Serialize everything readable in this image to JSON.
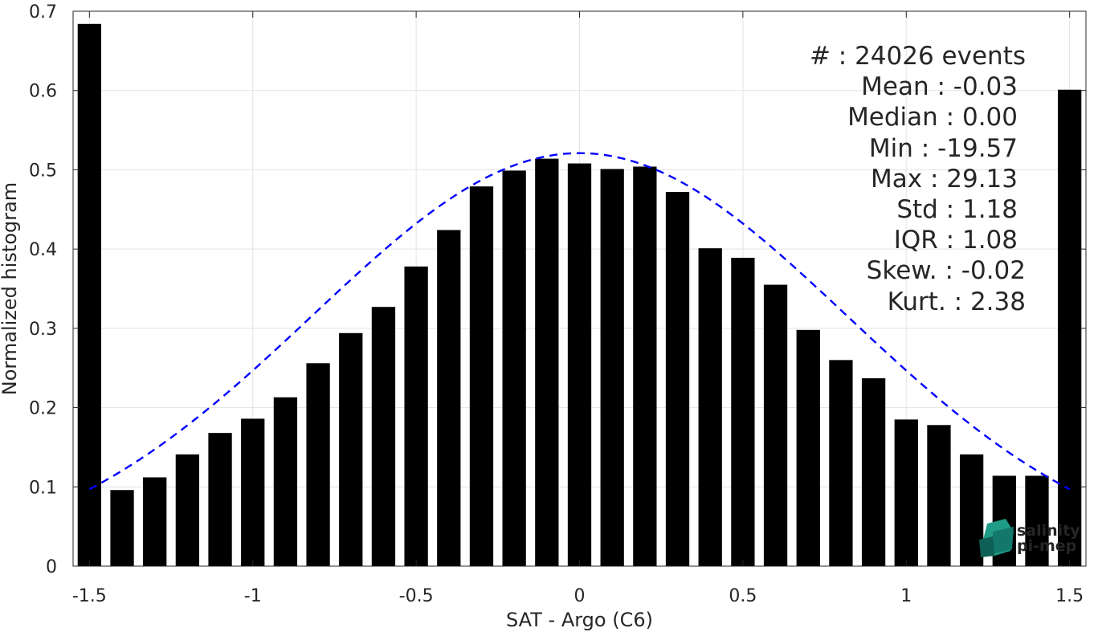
{
  "chart_data": {
    "type": "bar",
    "xlabel": "SAT - Argo (C6)",
    "ylabel": "Normalized histogram",
    "xlim": [
      -1.55,
      1.55
    ],
    "ylim": [
      0,
      0.7
    ],
    "xticks": [
      -1.5,
      -1,
      -0.5,
      0,
      0.5,
      1,
      1.5
    ],
    "xtick_labels": [
      "-1.5",
      "-1",
      "-0.5",
      "0",
      "0.5",
      "1",
      "1.5"
    ],
    "yticks": [
      0,
      0.1,
      0.2,
      0.3,
      0.4,
      0.5,
      0.6,
      0.7
    ],
    "ytick_labels": [
      "0",
      "0.1",
      "0.2",
      "0.3",
      "0.4",
      "0.5",
      "0.6",
      "0.7"
    ],
    "grid": true,
    "bar_color": "#000000",
    "bin_width": 0.1,
    "x": [
      -1.5,
      -1.4,
      -1.3,
      -1.2,
      -1.1,
      -1.0,
      -0.9,
      -0.8,
      -0.7,
      -0.6,
      -0.5,
      -0.4,
      -0.3,
      -0.2,
      -0.1,
      0.0,
      0.1,
      0.2,
      0.3,
      0.4,
      0.5,
      0.6,
      0.7,
      0.8,
      0.9,
      1.0,
      1.1,
      1.2,
      1.3,
      1.4,
      1.5
    ],
    "values": [
      0.684,
      0.096,
      0.112,
      0.141,
      0.168,
      0.186,
      0.213,
      0.256,
      0.294,
      0.327,
      0.378,
      0.424,
      0.479,
      0.499,
      0.514,
      0.508,
      0.501,
      0.504,
      0.472,
      0.401,
      0.389,
      0.355,
      0.298,
      0.26,
      0.237,
      0.185,
      0.178,
      0.141,
      0.114,
      0.114,
      0.601
    ],
    "fit_curve": {
      "type": "gaussian",
      "color": "#0000ff",
      "style": "dashed",
      "peak": 0.521,
      "center": 0.0,
      "x_range": [
        -1.5,
        1.5
      ],
      "y_at_ends": 0.097
    },
    "stats": [
      "#  : 24026 events",
      "Mean : -0.03",
      "Median : 0.00",
      "Min : -19.57",
      "Max : 29.13",
      "Std : 1.18",
      "IQR : 1.08",
      "Skew. : -0.02",
      "Kurt. : 2.38"
    ]
  },
  "logo": {
    "line1": "salinity",
    "line2": "pi-mep",
    "color1": "#1aa58f",
    "color2": "#0c5e55"
  }
}
